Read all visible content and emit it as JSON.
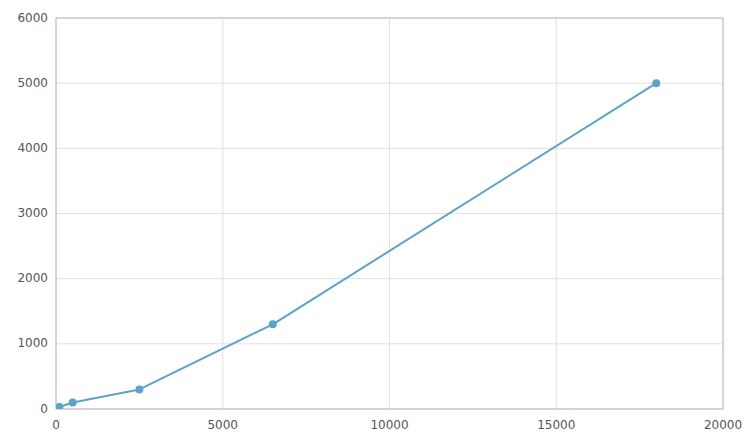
{
  "chart_data": {
    "type": "line",
    "x": [
      100,
      500,
      2500,
      6500,
      18000
    ],
    "values": [
      30,
      100,
      300,
      1300,
      5000
    ],
    "color": "#5ba3c9",
    "marker": "circle",
    "xlim": [
      0,
      20000
    ],
    "ylim": [
      0,
      6000
    ],
    "xticks": [
      0,
      5000,
      10000,
      15000,
      20000
    ],
    "yticks": [
      0,
      1000,
      2000,
      3000,
      4000,
      5000,
      6000
    ],
    "grid": true
  }
}
